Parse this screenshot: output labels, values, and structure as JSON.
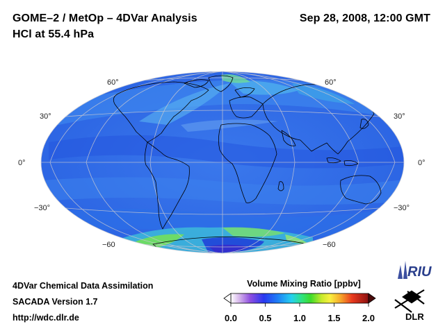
{
  "header": {
    "title": "GOME–2 / MetOp – 4DVar Analysis",
    "subtitle": "HCl at 55.4 hPa",
    "datetime": "Sep 28, 2008, 12:00 GMT"
  },
  "map": {
    "projection": "Hammer-Aitoff (global, equatorial)",
    "variable": "HCl",
    "pressure_level": "55.4 hPa",
    "lat_labels": [
      "60°",
      "30°",
      "0°",
      "−30°",
      "−60"
    ],
    "colors": {
      "background_blue": "#2f6ee8",
      "low_blue": "#1f50e0",
      "mid_cyan": "#2fb4f0",
      "high_green": "#5fe06a",
      "coast": "#000000",
      "graticule": "#c8c8d0"
    }
  },
  "footer": {
    "line1": "4DVar Chemical Data Assimilation",
    "line2": "SACADA Version 1.7",
    "line3": "http://wdc.dlr.de"
  },
  "colorbar": {
    "label": "Volume Mixing Ratio [ppbv]",
    "ticks": [
      "0.0",
      "0.5",
      "1.0",
      "1.5",
      "2.0"
    ],
    "tick_values": [
      0.0,
      0.5,
      1.0,
      1.5,
      2.0
    ],
    "min": 0.0,
    "max": 2.0
  },
  "logos": {
    "riu": "RIU",
    "dlr": "DLR"
  }
}
